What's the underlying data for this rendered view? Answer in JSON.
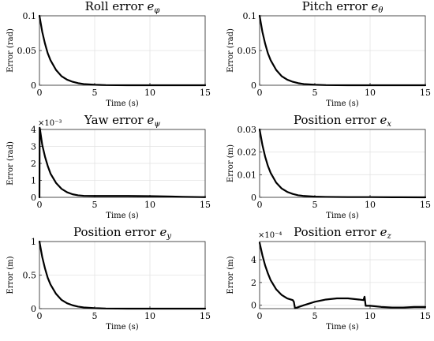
{
  "chart_data": [
    {
      "type": "line",
      "title": "Roll error e_φ",
      "title_main": "Roll error ",
      "title_sym": "e",
      "title_sub": "φ",
      "xlabel": "Time (s)",
      "ylabel": "Error (rad)",
      "xlim": [
        0,
        15
      ],
      "ylim": [
        0,
        0.1
      ],
      "xticks": [
        0,
        5,
        10,
        15
      ],
      "xtick_labels": [
        "0",
        "5",
        "10",
        "15"
      ],
      "yticks": [
        0,
        0.05,
        0.1
      ],
      "ytick_labels": [
        "0",
        "0.05",
        "0.1"
      ],
      "exponent_label": "",
      "grid": true,
      "series": [
        {
          "x": [
            0,
            0.25,
            0.5,
            0.75,
            1,
            1.5,
            2,
            2.5,
            3,
            3.5,
            4,
            5,
            6,
            8,
            10,
            12,
            15
          ],
          "values": [
            0.1,
            0.077,
            0.06,
            0.046,
            0.036,
            0.022,
            0.013,
            0.008,
            0.005,
            0.003,
            0.0018,
            0.0007,
            0.0002,
            0,
            0,
            0,
            0
          ]
        }
      ]
    },
    {
      "type": "line",
      "title": "Pitch error e_θ",
      "title_main": "Pitch error ",
      "title_sym": "e",
      "title_sub": "θ",
      "xlabel": "Time (s)",
      "ylabel": "Error (rad)",
      "xlim": [
        0,
        15
      ],
      "ylim": [
        0,
        0.1
      ],
      "xticks": [
        0,
        5,
        10,
        15
      ],
      "xtick_labels": [
        "0",
        "5",
        "10",
        "15"
      ],
      "yticks": [
        0,
        0.05,
        0.1
      ],
      "ytick_labels": [
        "0",
        "0.05",
        "0.1"
      ],
      "exponent_label": "",
      "grid": true,
      "series": [
        {
          "x": [
            0,
            0.25,
            0.5,
            0.75,
            1,
            1.5,
            2,
            2.5,
            3,
            3.5,
            4,
            5,
            6,
            8,
            10,
            12,
            15
          ],
          "values": [
            0.1,
            0.077,
            0.06,
            0.046,
            0.036,
            0.022,
            0.013,
            0.008,
            0.005,
            0.003,
            0.0018,
            0.0007,
            0.0002,
            0,
            0,
            0,
            0
          ]
        }
      ]
    },
    {
      "type": "line",
      "title": "Yaw error e_ψ",
      "title_main": "Yaw error ",
      "title_sym": "e",
      "title_sub": "ψ",
      "xlabel": "Time (s)",
      "ylabel": "Error (rad)",
      "xlim": [
        0,
        15
      ],
      "ylim": [
        0,
        4
      ],
      "xticks": [
        0,
        5,
        10,
        15
      ],
      "xtick_labels": [
        "0",
        "5",
        "10",
        "15"
      ],
      "yticks": [
        0,
        1,
        2,
        3,
        4
      ],
      "ytick_labels": [
        "0",
        "1",
        "2",
        "3",
        "4"
      ],
      "exponent_label": "×10⁻³",
      "grid": true,
      "series": [
        {
          "x": [
            0,
            0.02,
            0.05,
            0.25,
            0.5,
            0.75,
            1,
            1.5,
            2,
            2.5,
            3,
            3.5,
            4,
            5,
            6,
            8,
            10,
            12,
            13,
            15
          ],
          "values": [
            0,
            4.1,
            4.0,
            3.1,
            2.4,
            1.85,
            1.4,
            0.85,
            0.5,
            0.3,
            0.18,
            0.12,
            0.09,
            0.08,
            0.08,
            0.08,
            0.07,
            0.05,
            0.03,
            0.01
          ]
        }
      ]
    },
    {
      "type": "line",
      "title": "Position error e_x",
      "title_main": "Position error ",
      "title_sym": "e",
      "title_sub": "x",
      "xlabel": "Time (s)",
      "ylabel": "Error (m)",
      "xlim": [
        0,
        15
      ],
      "ylim": [
        0,
        0.03
      ],
      "xticks": [
        0,
        5,
        10,
        15
      ],
      "xtick_labels": [
        "0",
        "5",
        "10",
        "15"
      ],
      "yticks": [
        0,
        0.01,
        0.02,
        0.03
      ],
      "ytick_labels": [
        "0",
        "0.01",
        "0.02",
        "0.03"
      ],
      "exponent_label": "",
      "grid": true,
      "series": [
        {
          "x": [
            0,
            0.25,
            0.5,
            0.75,
            1,
            1.5,
            2,
            2.5,
            3,
            3.5,
            4,
            5,
            6,
            8,
            10,
            12,
            15
          ],
          "values": [
            0.03,
            0.0232,
            0.018,
            0.0139,
            0.0108,
            0.0065,
            0.0039,
            0.0024,
            0.0015,
            0.0009,
            0.0006,
            0.0003,
            0.0002,
            0.0001,
            0.0001,
            5e-05,
            0
          ]
        }
      ]
    },
    {
      "type": "line",
      "title": "Position error e_y",
      "title_main": "Position error ",
      "title_sym": "e",
      "title_sub": "y",
      "xlabel": "Time (s)",
      "ylabel": "Error (m)",
      "xlim": [
        0,
        15
      ],
      "ylim": [
        0,
        1
      ],
      "xticks": [
        0,
        5,
        10,
        15
      ],
      "xtick_labels": [
        "0",
        "5",
        "10",
        "15"
      ],
      "yticks": [
        0,
        0.5,
        1
      ],
      "ytick_labels": [
        "0",
        "0.5",
        "1"
      ],
      "exponent_label": "",
      "grid": true,
      "series": [
        {
          "x": [
            0,
            0.25,
            0.5,
            0.75,
            1,
            1.5,
            2,
            2.5,
            3,
            3.5,
            4,
            5,
            6,
            8,
            10,
            12,
            15
          ],
          "values": [
            1.0,
            0.77,
            0.6,
            0.46,
            0.36,
            0.22,
            0.13,
            0.08,
            0.05,
            0.03,
            0.018,
            0.007,
            0.002,
            0,
            0,
            0,
            0
          ]
        }
      ]
    },
    {
      "type": "line",
      "title": "Position error e_z",
      "title_main": "Position error ",
      "title_sym": "e",
      "title_sub": "z",
      "xlabel": "Time (s)",
      "ylabel": "Error (m)",
      "xlim": [
        0,
        15
      ],
      "ylim": [
        -0.3,
        5.6
      ],
      "xticks": [
        0,
        5,
        10,
        15
      ],
      "xtick_labels": [
        "0",
        "5",
        "10",
        "15"
      ],
      "yticks": [
        0,
        2,
        4
      ],
      "ytick_labels": [
        "0",
        "2",
        "4"
      ],
      "exponent_label": "×10⁻⁴",
      "grid": true,
      "series": [
        {
          "x": [
            0,
            0.25,
            0.5,
            0.75,
            1,
            1.5,
            2,
            2.5,
            3,
            3.1,
            3.2,
            3.4,
            4,
            5,
            6,
            7,
            8,
            9,
            9.4,
            9.5,
            9.6,
            10,
            11,
            12,
            13,
            14,
            15
          ],
          "values": [
            5.5,
            4.4,
            3.5,
            2.8,
            2.2,
            1.4,
            0.9,
            0.6,
            0.45,
            0.3,
            -0.25,
            -0.2,
            0.0,
            0.3,
            0.5,
            0.6,
            0.6,
            0.5,
            0.45,
            0.75,
            -0.05,
            -0.05,
            -0.15,
            -0.2,
            -0.2,
            -0.15,
            -0.15
          ]
        }
      ]
    }
  ]
}
